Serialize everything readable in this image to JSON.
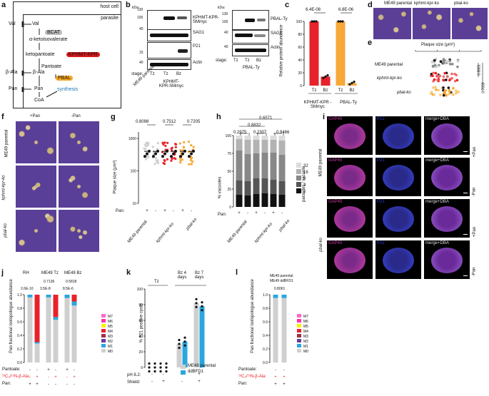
{
  "panel_letters": [
    "a",
    "b",
    "c",
    "d",
    "e",
    "f",
    "g",
    "h",
    "i",
    "j",
    "k",
    "l"
  ],
  "a": {
    "host_cell": "host cell",
    "parasite": "parasite",
    "val_out": "Val",
    "val_in": "Val",
    "bcat": "BCAT",
    "akiv": "α-ketoisovalerate",
    "ketopantoate": "ketopantoate",
    "kphmt": "KPHMT-KPR",
    "pantoate": "Pantoate",
    "beta_ala_out": "β-Ala",
    "beta_ala_in": "β-Ala",
    "pbal": "PBAL",
    "pan_out": "Pan",
    "pan_in": "Pan",
    "synthesis": "synthesis",
    "coa": "CoA",
    "colors": {
      "bcat": "#bdbdbd",
      "kphmt": "#d7191c",
      "pbal": "#f5a623",
      "synthesis": "#1f78b4"
    }
  },
  "b": {
    "kda": "kDa:",
    "mw_left": [
      "130",
      "100",
      "40",
      "15",
      "40"
    ],
    "mw_right": [
      "130",
      "100",
      "40",
      "40"
    ],
    "labels_left": [
      "KPHMT-KPR-SMmyc",
      "SAG1",
      "P21",
      "Actin"
    ],
    "labels_right": [
      "PBAL-Ty",
      "SAG1",
      "Actin"
    ],
    "stage": "stage:",
    "stages_left": [
      "Tz",
      "Tz",
      "Bz"
    ],
    "stages_right": [
      "Tz",
      "Tz",
      "Bz"
    ],
    "lanes_left_bottom": [
      "ME49 parental",
      "KPHMT-KPR-SMmyc"
    ],
    "lanes_right_bottom": "PBAL-Ty"
  },
  "c": {
    "pvals": [
      "6.4E-08",
      "6.8E-06"
    ],
    "ylabel": "Relative protein abundance",
    "yticks": [
      "0",
      "20",
      "40",
      "60",
      "80",
      "100"
    ],
    "xticks": [
      "Tz",
      "Bz",
      "Tz",
      "Bz"
    ],
    "groups": [
      "KPHMT-KPR -SMmyc",
      "PBAL-Ty"
    ]
  },
  "chart_data": [
    {
      "panel": "c",
      "type": "bar",
      "categories": [
        "Tz",
        "Bz",
        "Tz",
        "Bz"
      ],
      "groups": [
        "KPHMT-KPR -SMmyc",
        "KPHMT-KPR -SMmyc",
        "PBAL-Ty",
        "PBAL-Ty"
      ],
      "values": [
        100,
        14,
        100,
        4
      ],
      "colors": [
        "#e8222a",
        "#e8222a",
        "#f7a838",
        "#f7a838"
      ],
      "ylim": [
        0,
        100
      ],
      "ylabel": "Relative protein abundance"
    },
    {
      "panel": "k",
      "type": "bar",
      "categories": [
        "Tz -",
        "Tz +",
        "Bz 4 days",
        "Bz 7 days"
      ],
      "series": [
        {
          "name": "ME49 parental",
          "values": [
            0,
            0,
            30,
            82
          ],
          "color": "#cfcfcf"
        },
        {
          "name": "ddBFD1",
          "values": [
            0,
            0,
            33,
            78
          ],
          "color": "#2aa7dd"
        }
      ],
      "ylim": [
        0,
        100
      ],
      "ylabel": "% P21 positive cysts"
    }
  ],
  "d": {
    "titles": [
      "ME49 parental",
      "kphmt-kpr-ko",
      "pbal-ko"
    ]
  },
  "e": {
    "title": "Plaque size (μm²)",
    "xticks": [
      "10",
      "100",
      "1000",
      "10000"
    ],
    "rows": [
      "ME49 parental",
      "kphmt-kpr-ko",
      "pbal-ko"
    ],
    "pvals": [
      "0.8881",
      "0.7059"
    ]
  },
  "f": {
    "cols": [
      "+Pan",
      "-Pan"
    ],
    "rows": [
      "ME49 parental",
      "kphmt-kpr-ko",
      "pbal-ko"
    ]
  },
  "g": {
    "pvals": [
      "0.8098",
      "0.7512",
      "0.7205"
    ],
    "ylabel": "Plaque size (μm²)",
    "yticks": [
      "1000",
      "100",
      "10"
    ],
    "pan": "Pan:",
    "pan_signs": [
      "+",
      "-",
      "+",
      "-",
      "+",
      "-"
    ],
    "groups": [
      "ME49 parental",
      "kphmt-kpr-ko",
      "pbal-ko"
    ]
  },
  "h": {
    "pvals": [
      "0.6571",
      "0.8832",
      "0.2975",
      "0.2307",
      "0.9466"
    ],
    "ylabel": "% vacuoles",
    "yticks": [
      "0",
      "25",
      "50",
      "75",
      "100"
    ],
    "legend_title": "parasites / vacuole",
    "legend": [
      "32",
      "16",
      "8",
      "4",
      "2"
    ],
    "pan": "Pan:",
    "pan_signs": [
      "+",
      "-",
      "+",
      "-",
      "+",
      "-"
    ],
    "groups": [
      "ME49 parental",
      "kphmt-kpr-ko",
      "pbal-ko"
    ]
  },
  "i": {
    "channels": [
      "GAP45",
      "P21",
      "merge+DBA"
    ],
    "rows": [
      "+Pan",
      "-Pan",
      "+Pan",
      "-Pan"
    ],
    "groups": [
      "ME49 parental",
      "pbal-ko"
    ]
  },
  "j": {
    "headers": [
      "RH",
      "ME49 Tz",
      "ME49 Bz"
    ],
    "pvals": [
      "2.6E-10",
      "0.7136",
      "3.5E-8",
      "0.5818",
      "8.5E-6"
    ],
    "ylabel": "Pan fractional isotopologue abundance",
    "yticks": [
      "0.0",
      "0.2",
      "0.4",
      "0.6",
      "0.8",
      "1.0"
    ],
    "legend": [
      "M7",
      "M6",
      "M5",
      "M4",
      "M3",
      "M2",
      "M1",
      "M0"
    ],
    "rows": [
      "Pantoate:",
      "¹³C₃/¹⁵N-β-Ala:",
      "Pan:"
    ]
  },
  "k": {
    "headers": [
      "Tz",
      "Bz 4 days",
      "Bz 7 days"
    ],
    "ylabel": "% P21 positive cysts",
    "yticks": [
      "0",
      "20",
      "40",
      "60",
      "80",
      "100"
    ],
    "legend": [
      "ME49 parental",
      "ddBFD1"
    ],
    "rows": [
      "pH 8.2:",
      "Shield:"
    ]
  },
  "l": {
    "headers": [
      "ME49 parental",
      "ME49 ddBFD1"
    ],
    "pval": "0.8061",
    "ylabel": "Pan fractional isotopologue abundance",
    "yticks": [
      "0.0",
      "0.2",
      "0.4",
      "0.6",
      "0.8",
      "1.0"
    ],
    "legend": [
      "M7",
      "M6",
      "M5",
      "M4",
      "M3",
      "M2",
      "M1",
      "M0"
    ],
    "rows": [
      "Pantoate:",
      "¹³C₃/¹⁵N-β-Ala:",
      "Pan:"
    ]
  }
}
